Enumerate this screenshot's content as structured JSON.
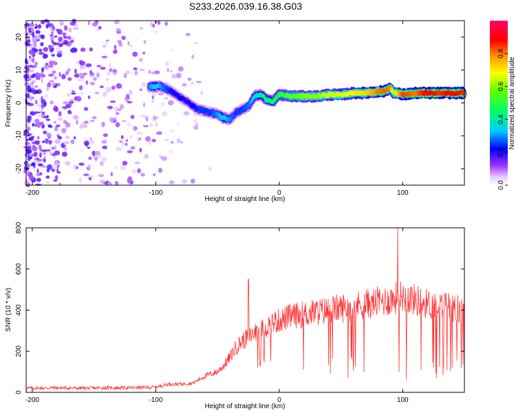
{
  "title": "S233.2026.039.16.38.G03",
  "chart_data": [
    {
      "type": "heatmap",
      "xlabel": "Height of straight line (km)",
      "ylabel": "Frequency (Hz)",
      "xlim": [
        -205,
        150
      ],
      "ylim": [
        -25,
        25
      ],
      "xticks": [
        -200,
        -100,
        0,
        100
      ],
      "yticks": [
        -20,
        -10,
        0,
        10,
        20
      ],
      "ridge": {
        "x": [
          -105,
          -100,
          -95,
          -90,
          -85,
          -80,
          -75,
          -70,
          -65,
          -60,
          -55,
          -50,
          -45,
          -40,
          -35,
          -30,
          -25,
          -20,
          -15,
          -10,
          -5,
          0,
          10,
          20,
          30,
          40,
          50,
          60,
          70,
          80,
          85,
          90,
          93,
          95,
          100,
          110,
          120,
          130,
          140,
          150
        ],
        "y": [
          5,
          5,
          5,
          4,
          3,
          1.5,
          0.5,
          -1,
          -2,
          -2.5,
          -3,
          -3.5,
          -4.5,
          -5,
          -3,
          -2,
          -1,
          2,
          2.5,
          1,
          0.5,
          2.5,
          2,
          2,
          2,
          2.5,
          2.5,
          3,
          3,
          3.5,
          3.5,
          4.5,
          3,
          3,
          2.5,
          3,
          3,
          3,
          3,
          3
        ],
        "amplitude": [
          0.3,
          0.35,
          0.3,
          0.25,
          0.22,
          0.22,
          0.2,
          0.22,
          0.25,
          0.25,
          0.25,
          0.3,
          0.35,
          0.3,
          0.25,
          0.25,
          0.28,
          0.35,
          0.4,
          0.45,
          0.45,
          0.5,
          0.55,
          0.6,
          0.6,
          0.65,
          0.65,
          0.7,
          0.72,
          0.8,
          0.82,
          0.8,
          0.6,
          0.7,
          0.85,
          0.8,
          0.9,
          0.85,
          0.9,
          0.85
        ]
      },
      "colorbar": {
        "label": "Normalized spectral amplitude",
        "range": [
          0,
          1
        ],
        "ticks": [
          "0.0",
          "0.2",
          "0.4",
          "0.6",
          "0.8"
        ],
        "tick_values": [
          0,
          0.2,
          0.4,
          0.6,
          0.8
        ]
      }
    },
    {
      "type": "line",
      "xlabel": "Height of straight line (km)",
      "ylabel": "SNR (10 * v/v)",
      "xlim": [
        -205,
        150
      ],
      "ylim": [
        0,
        800
      ],
      "xticks": [
        -200,
        -100,
        0,
        100
      ],
      "yticks": [
        0,
        200,
        400,
        600,
        800
      ],
      "color": "#ff3333",
      "series": [
        {
          "name": "SNR",
          "x": [
            -205,
            -180,
            -160,
            -140,
            -120,
            -100,
            -90,
            -80,
            -70,
            -60,
            -50,
            -45,
            -40,
            -35,
            -30,
            -25,
            -20,
            -15,
            -10,
            -5,
            0,
            10,
            20,
            30,
            40,
            50,
            60,
            70,
            80,
            90,
            95,
            100,
            110,
            120,
            130,
            140,
            150
          ],
          "y": [
            20,
            22,
            20,
            22,
            22,
            25,
            40,
            40,
            45,
            80,
            100,
            130,
            170,
            220,
            250,
            270,
            290,
            300,
            320,
            340,
            350,
            370,
            380,
            390,
            400,
            410,
            420,
            430,
            440,
            450,
            460,
            470,
            450,
            430,
            420,
            410,
            400
          ],
          "spikes": [
            {
              "x": -25,
              "y": 550
            },
            {
              "x": -15,
              "y": 160
            },
            {
              "x": 75,
              "y": 470
            },
            {
              "x": 96,
              "y": 800
            },
            {
              "x": 97,
              "y": 100
            }
          ]
        }
      ]
    }
  ]
}
